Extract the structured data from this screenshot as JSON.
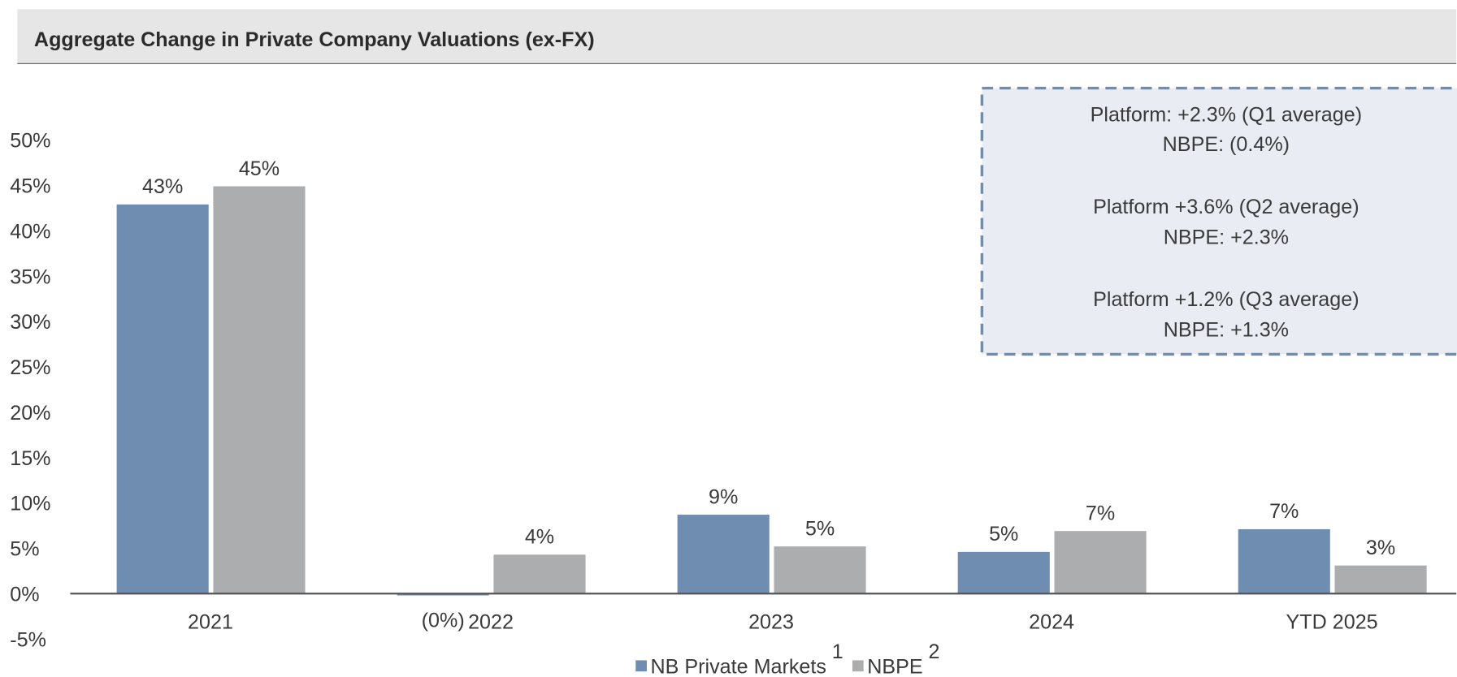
{
  "chart_data": {
    "type": "bar",
    "title": "Aggregate Change in Private Company Valuations (ex-FX)",
    "categories": [
      "2021",
      "2022",
      "2023",
      "2024",
      "YTD 2025"
    ],
    "series": [
      {
        "name": "NB Private Markets",
        "superscript": "1",
        "color": "#6e8db1",
        "values": [
          42.9,
          -0.2,
          8.7,
          4.6,
          7.1
        ],
        "value_labels": [
          "43%",
          "(0%)",
          "9%",
          "5%",
          "7%"
        ]
      },
      {
        "name": "NBPE",
        "superscript": "2",
        "color": "#acadaf",
        "values": [
          44.9,
          4.3,
          5.2,
          6.9,
          3.1
        ],
        "value_labels": [
          "45%",
          "4%",
          "5%",
          "7%",
          "3%"
        ]
      }
    ],
    "ylim": [
      -5,
      50
    ],
    "yticks": [
      {
        "value": -5,
        "label": "-5%"
      },
      {
        "value": 0,
        "label": "0%"
      },
      {
        "value": 5,
        "label": "5%"
      },
      {
        "value": 10,
        "label": "10%"
      },
      {
        "value": 15,
        "label": "15%"
      },
      {
        "value": 20,
        "label": "20%"
      },
      {
        "value": 25,
        "label": "25%"
      },
      {
        "value": 30,
        "label": "30%"
      },
      {
        "value": 35,
        "label": "35%"
      },
      {
        "value": 40,
        "label": "40%"
      },
      {
        "value": 45,
        "label": "45%"
      },
      {
        "value": 50,
        "label": "50%"
      }
    ],
    "grid": false,
    "legend": "bottom",
    "annotations": [
      "Platform: +2.3% (Q1 average)",
      "NBPE: (0.4%)",
      "Platform +3.6% (Q2 average)",
      "NBPE: +2.3%",
      "Platform +1.2% (Q3 average)",
      "NBPE: +1.3%"
    ]
  }
}
